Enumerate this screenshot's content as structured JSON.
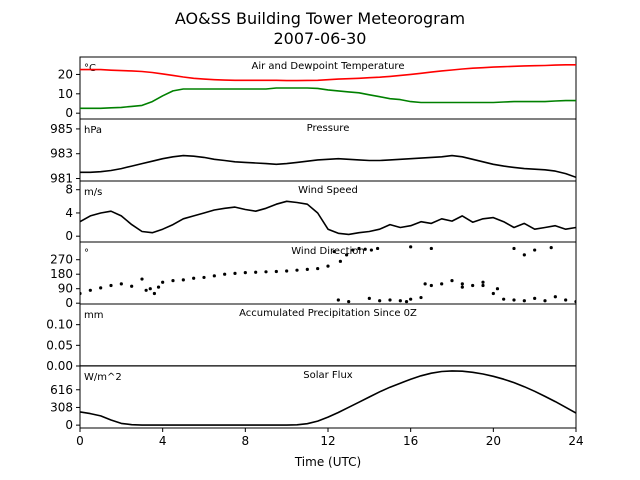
{
  "figure": {
    "title_line1": "AO&SS Building Tower Meteorogram",
    "title_line2": "2007-06-30",
    "xlabel": "Time (UTC)"
  },
  "chart_data": [
    {
      "type": "line",
      "title": "Air and Dewpoint Temperature",
      "unit": "°C",
      "x_range": [
        0,
        24
      ],
      "ylim": [
        -3,
        29
      ],
      "yticks": [
        0,
        10,
        20
      ],
      "series": [
        {
          "color": "#ff0000",
          "x": [
            0,
            0.5,
            1,
            1.5,
            2,
            2.5,
            3,
            3.5,
            4,
            4.5,
            5,
            5.5,
            6,
            6.5,
            7,
            7.5,
            8,
            8.5,
            9,
            9.5,
            10,
            10.5,
            11,
            11.5,
            12,
            12.5,
            13,
            13.5,
            14,
            14.5,
            15,
            15.5,
            16,
            16.5,
            17,
            17.5,
            18,
            18.5,
            19,
            19.5,
            20,
            20.5,
            21,
            21.5,
            22,
            22.5,
            23,
            23.5,
            24
          ],
          "values": [
            22.5,
            22.5,
            22.5,
            22.2,
            22,
            21.8,
            21.5,
            21,
            20.3,
            19.5,
            18.7,
            18,
            17.6,
            17.3,
            17.1,
            17,
            17,
            17,
            17,
            17,
            16.8,
            16.8,
            16.9,
            17,
            17.3,
            17.6,
            17.8,
            18,
            18.3,
            18.6,
            19,
            19.5,
            20,
            20.6,
            21.2,
            21.8,
            22.3,
            22.8,
            23.2,
            23.5,
            23.8,
            24,
            24.2,
            24.4,
            24.5,
            24.6,
            24.8,
            25,
            25
          ]
        },
        {
          "color": "#008000",
          "x": [
            0,
            0.5,
            1,
            1.5,
            2,
            2.5,
            3,
            3.5,
            4,
            4.5,
            5,
            5.5,
            6,
            6.5,
            7,
            7.5,
            8,
            8.5,
            9,
            9.5,
            10,
            10.5,
            11,
            11.5,
            12,
            12.5,
            13,
            13.5,
            14,
            14.5,
            15,
            15.5,
            16,
            16.5,
            17,
            17.5,
            18,
            18.5,
            19,
            19.5,
            20,
            20.5,
            21,
            21.5,
            22,
            22.5,
            23,
            23.5,
            24
          ],
          "values": [
            2.5,
            2.5,
            2.5,
            2.8,
            3,
            3.5,
            4,
            6,
            9,
            11.5,
            12.5,
            12.5,
            12.5,
            12.5,
            12.5,
            12.5,
            12.5,
            12.5,
            12.5,
            13,
            13,
            13,
            13,
            12.8,
            12,
            11.5,
            11,
            10.5,
            9.5,
            8.5,
            7.5,
            7,
            6,
            5.5,
            5.5,
            5.5,
            5.5,
            5.5,
            5.5,
            5.5,
            5.5,
            5.8,
            6,
            6,
            6,
            6,
            6.3,
            6.5,
            6.5
          ]
        }
      ]
    },
    {
      "type": "line",
      "title": "Pressure",
      "unit": "hPa",
      "x_range": [
        0,
        24
      ],
      "ylim": [
        980.8,
        985.8
      ],
      "yticks": [
        981,
        983,
        985
      ],
      "series": [
        {
          "color": "#000000",
          "x": [
            0,
            0.5,
            1,
            1.5,
            2,
            2.5,
            3,
            3.5,
            4,
            4.5,
            5,
            5.5,
            6,
            6.5,
            7,
            7.5,
            8,
            8.5,
            9,
            9.5,
            10,
            10.5,
            11,
            11.5,
            12,
            12.5,
            13,
            13.5,
            14,
            14.5,
            15,
            15.5,
            16,
            16.5,
            17,
            17.5,
            18,
            18.5,
            19,
            19.5,
            20,
            20.5,
            21,
            21.5,
            22,
            22.5,
            23,
            23.5,
            24
          ],
          "values": [
            981.5,
            981.5,
            981.55,
            981.65,
            981.8,
            982,
            982.2,
            982.4,
            982.6,
            982.75,
            982.85,
            982.8,
            982.7,
            982.55,
            982.45,
            982.35,
            982.3,
            982.25,
            982.2,
            982.15,
            982.2,
            982.3,
            982.4,
            982.5,
            982.55,
            982.6,
            982.55,
            982.5,
            982.45,
            982.45,
            982.5,
            982.55,
            982.6,
            982.65,
            982.7,
            982.75,
            982.85,
            982.75,
            982.55,
            982.35,
            982.15,
            982,
            981.9,
            981.8,
            981.75,
            981.7,
            981.6,
            981.4,
            981.1
          ]
        }
      ]
    },
    {
      "type": "line",
      "title": "Wind Speed",
      "unit": "m/s",
      "x_range": [
        0,
        24
      ],
      "ylim": [
        -1,
        9.5
      ],
      "yticks": [
        0,
        4,
        8
      ],
      "series": [
        {
          "color": "#000000",
          "x": [
            0,
            0.5,
            1,
            1.5,
            2,
            2.5,
            3,
            3.5,
            4,
            4.5,
            5,
            5.5,
            6,
            6.5,
            7,
            7.5,
            8,
            8.5,
            9,
            9.5,
            10,
            10.5,
            11,
            11.5,
            12,
            12.5,
            13,
            13.5,
            14,
            14.5,
            15,
            15.5,
            16,
            16.5,
            17,
            17.5,
            18,
            18.5,
            19,
            19.5,
            20,
            20.5,
            21,
            21.5,
            22,
            22.5,
            23,
            23.5,
            24
          ],
          "values": [
            2.5,
            3.5,
            4,
            4.3,
            3.5,
            2,
            0.8,
            0.6,
            1.2,
            2,
            3,
            3.5,
            4,
            4.5,
            4.8,
            5,
            4.6,
            4.3,
            4.8,
            5.5,
            6,
            5.8,
            5.5,
            4,
            1.2,
            0.5,
            0.3,
            0.6,
            0.8,
            1.2,
            2,
            1.5,
            1.8,
            2.5,
            2.2,
            3,
            2.6,
            3.5,
            2.4,
            3,
            3.2,
            2.5,
            1.5,
            2.2,
            1.2,
            1.5,
            1.8,
            1.2,
            1.5
          ]
        }
      ]
    },
    {
      "type": "scatter",
      "title": "Wind Direction",
      "unit": "°",
      "x_range": [
        0,
        24
      ],
      "ylim": [
        -5,
        380
      ],
      "yticks": [
        0,
        90,
        180,
        270
      ],
      "series": [
        {
          "color": "#000000",
          "x": [
            0,
            0.5,
            1,
            1.5,
            2,
            2.5,
            3,
            3.2,
            3.4,
            3.6,
            3.8,
            4,
            4.5,
            5,
            5.5,
            6,
            6.5,
            7,
            7.5,
            8,
            8.5,
            9,
            9.5,
            10,
            10.5,
            11,
            11.5,
            12,
            12.3,
            12.6,
            12.9,
            13.2,
            13.5,
            13.8,
            14.1,
            14.4,
            12.5,
            13,
            14,
            14.5,
            15,
            15.5,
            16,
            16.5,
            17,
            17.5,
            18,
            18.5,
            19,
            19.5,
            20,
            20.5,
            21,
            21.5,
            22,
            22.5,
            23,
            23.5,
            24,
            16,
            17,
            18.5,
            19.5,
            20.2,
            21,
            21.5,
            22,
            22.8,
            15.8,
            16.7
          ],
          "values": [
            60,
            80,
            95,
            110,
            120,
            105,
            150,
            80,
            90,
            60,
            100,
            130,
            140,
            145,
            155,
            160,
            170,
            180,
            185,
            190,
            192,
            195,
            197,
            200,
            205,
            210,
            215,
            230,
            320,
            260,
            300,
            330,
            340,
            335,
            330,
            340,
            20,
            10,
            30,
            15,
            20,
            15,
            25,
            35,
            110,
            120,
            140,
            120,
            110,
            130,
            60,
            25,
            20,
            15,
            30,
            15,
            40,
            20,
            10,
            350,
            340,
            100,
            110,
            90,
            340,
            300,
            330,
            345,
            10,
            120
          ]
        }
      ]
    },
    {
      "type": "line",
      "title": "Accumulated Precipitation Since 0Z",
      "unit": "mm",
      "x_range": [
        0,
        24
      ],
      "ylim": [
        0,
        0.15
      ],
      "yticks": [
        0,
        0.05,
        0.1
      ],
      "ytick_labels": [
        "0.00",
        "0.05",
        "0.10"
      ],
      "series": [
        {
          "color": "#000000",
          "x": [
            0,
            24
          ],
          "values": [
            0,
            0
          ]
        }
      ]
    },
    {
      "type": "line",
      "title": "Solar Flux",
      "unit": "W/m^2",
      "x_range": [
        0,
        24
      ],
      "ylim": [
        -50,
        1030
      ],
      "yticks": [
        0,
        308,
        616
      ],
      "series": [
        {
          "color": "#000000",
          "x": [
            0,
            0.5,
            1,
            1.5,
            2,
            2.5,
            3,
            4,
            5,
            6,
            7,
            8,
            9,
            10,
            10.5,
            11,
            11.5,
            12,
            12.5,
            13,
            13.5,
            14,
            14.5,
            15,
            15.5,
            16,
            16.5,
            17,
            17.5,
            18,
            18.5,
            19,
            19.5,
            20,
            20.5,
            21,
            21.5,
            22,
            22.5,
            23,
            23.5,
            24
          ],
          "values": [
            230,
            200,
            160,
            90,
            30,
            8,
            0,
            0,
            0,
            0,
            0,
            0,
            0,
            0,
            5,
            25,
            70,
            140,
            220,
            310,
            400,
            490,
            580,
            660,
            730,
            800,
            860,
            905,
            935,
            945,
            940,
            920,
            890,
            850,
            800,
            740,
            670,
            590,
            500,
            410,
            310,
            210
          ]
        }
      ]
    }
  ]
}
